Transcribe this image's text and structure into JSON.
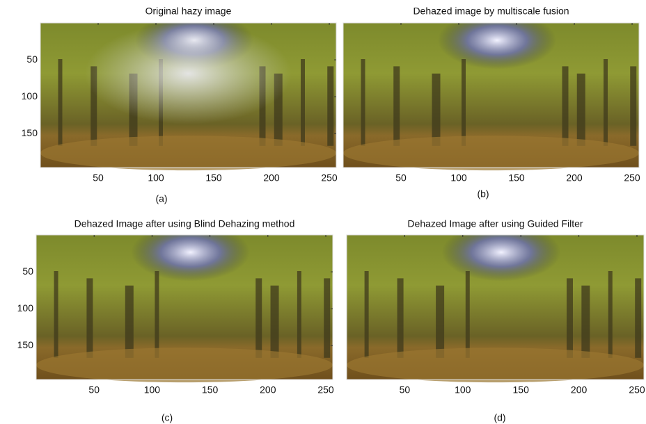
{
  "chart_data": [
    {
      "type": "image",
      "title": "Original hazy image",
      "caption": "(a)",
      "haze": true,
      "xlim": [
        0,
        256
      ],
      "ylim": [
        196,
        0
      ],
      "xticks": [
        50,
        100,
        150,
        200,
        250
      ],
      "yticks": [
        50,
        100,
        150
      ]
    },
    {
      "type": "image",
      "title": "Dehazed image by multiscale fusion",
      "caption": "(b)",
      "haze": false,
      "xlim": [
        0,
        256
      ],
      "ylim": [
        196,
        0
      ],
      "xticks": [
        50,
        100,
        150,
        200,
        250
      ]
    },
    {
      "type": "image",
      "title": "Dehazed Image after using Blind Dehazing method",
      "caption": "(c)",
      "haze": false,
      "xlim": [
        0,
        256
      ],
      "ylim": [
        196,
        0
      ],
      "xticks": [
        50,
        100,
        150,
        200,
        250
      ],
      "yticks": [
        50,
        100,
        150
      ]
    },
    {
      "type": "image",
      "title": "Dehazed Image after using Guided Filter",
      "caption": "(d)",
      "haze": false,
      "xlim": [
        0,
        256
      ],
      "ylim": [
        196,
        0
      ],
      "xticks": [
        50,
        100,
        150,
        200,
        250
      ]
    }
  ]
}
